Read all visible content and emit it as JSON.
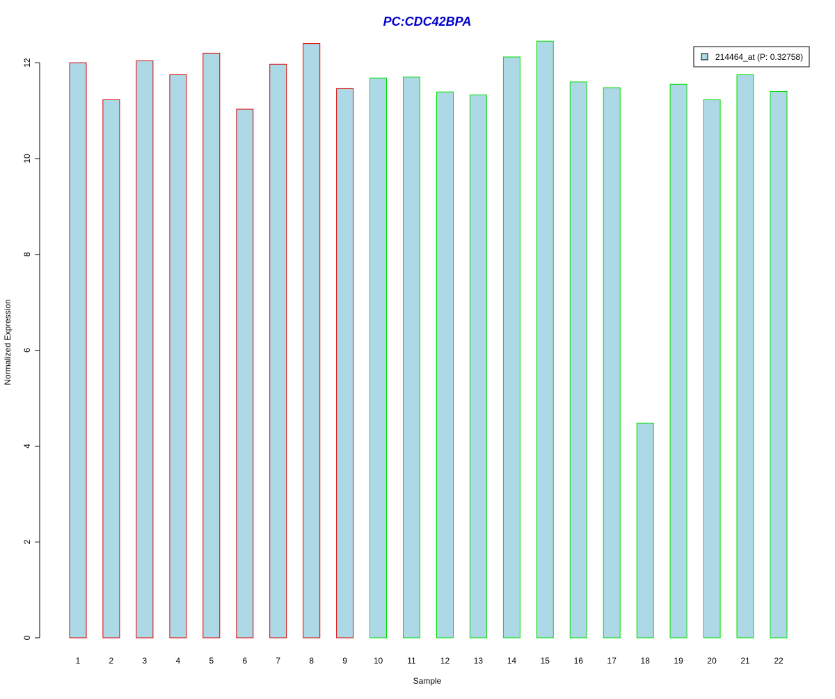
{
  "chart_data": {
    "type": "bar",
    "title": "PC:CDC42BPA",
    "xlabel": "Sample",
    "ylabel": "Normalized Expression",
    "ylim": [
      0,
      12.5
    ],
    "yticks": [
      0,
      2,
      4,
      6,
      8,
      10,
      12
    ],
    "grid": false,
    "legend_position": "top-right",
    "categories": [
      "1",
      "2",
      "3",
      "4",
      "5",
      "6",
      "7",
      "8",
      "9",
      "10",
      "11",
      "12",
      "13",
      "14",
      "15",
      "16",
      "17",
      "18",
      "19",
      "20",
      "21",
      "22"
    ],
    "series": [
      {
        "name": "214464_at (P: 0.32758)",
        "values": [
          12.0,
          11.23,
          12.04,
          11.75,
          12.2,
          11.03,
          11.97,
          12.4,
          11.46,
          11.68,
          11.7,
          11.39,
          11.33,
          12.12,
          12.45,
          11.6,
          11.48,
          4.48,
          11.55,
          11.23,
          11.75,
          11.4
        ]
      }
    ],
    "groups": [
      {
        "start": 1,
        "end": 9,
        "border_color": "#dd0000"
      },
      {
        "start": 10,
        "end": 22,
        "border_color": "#00dd00"
      }
    ],
    "colors": {
      "bar_fill": "#add8e6",
      "title": "#0000cd"
    }
  }
}
